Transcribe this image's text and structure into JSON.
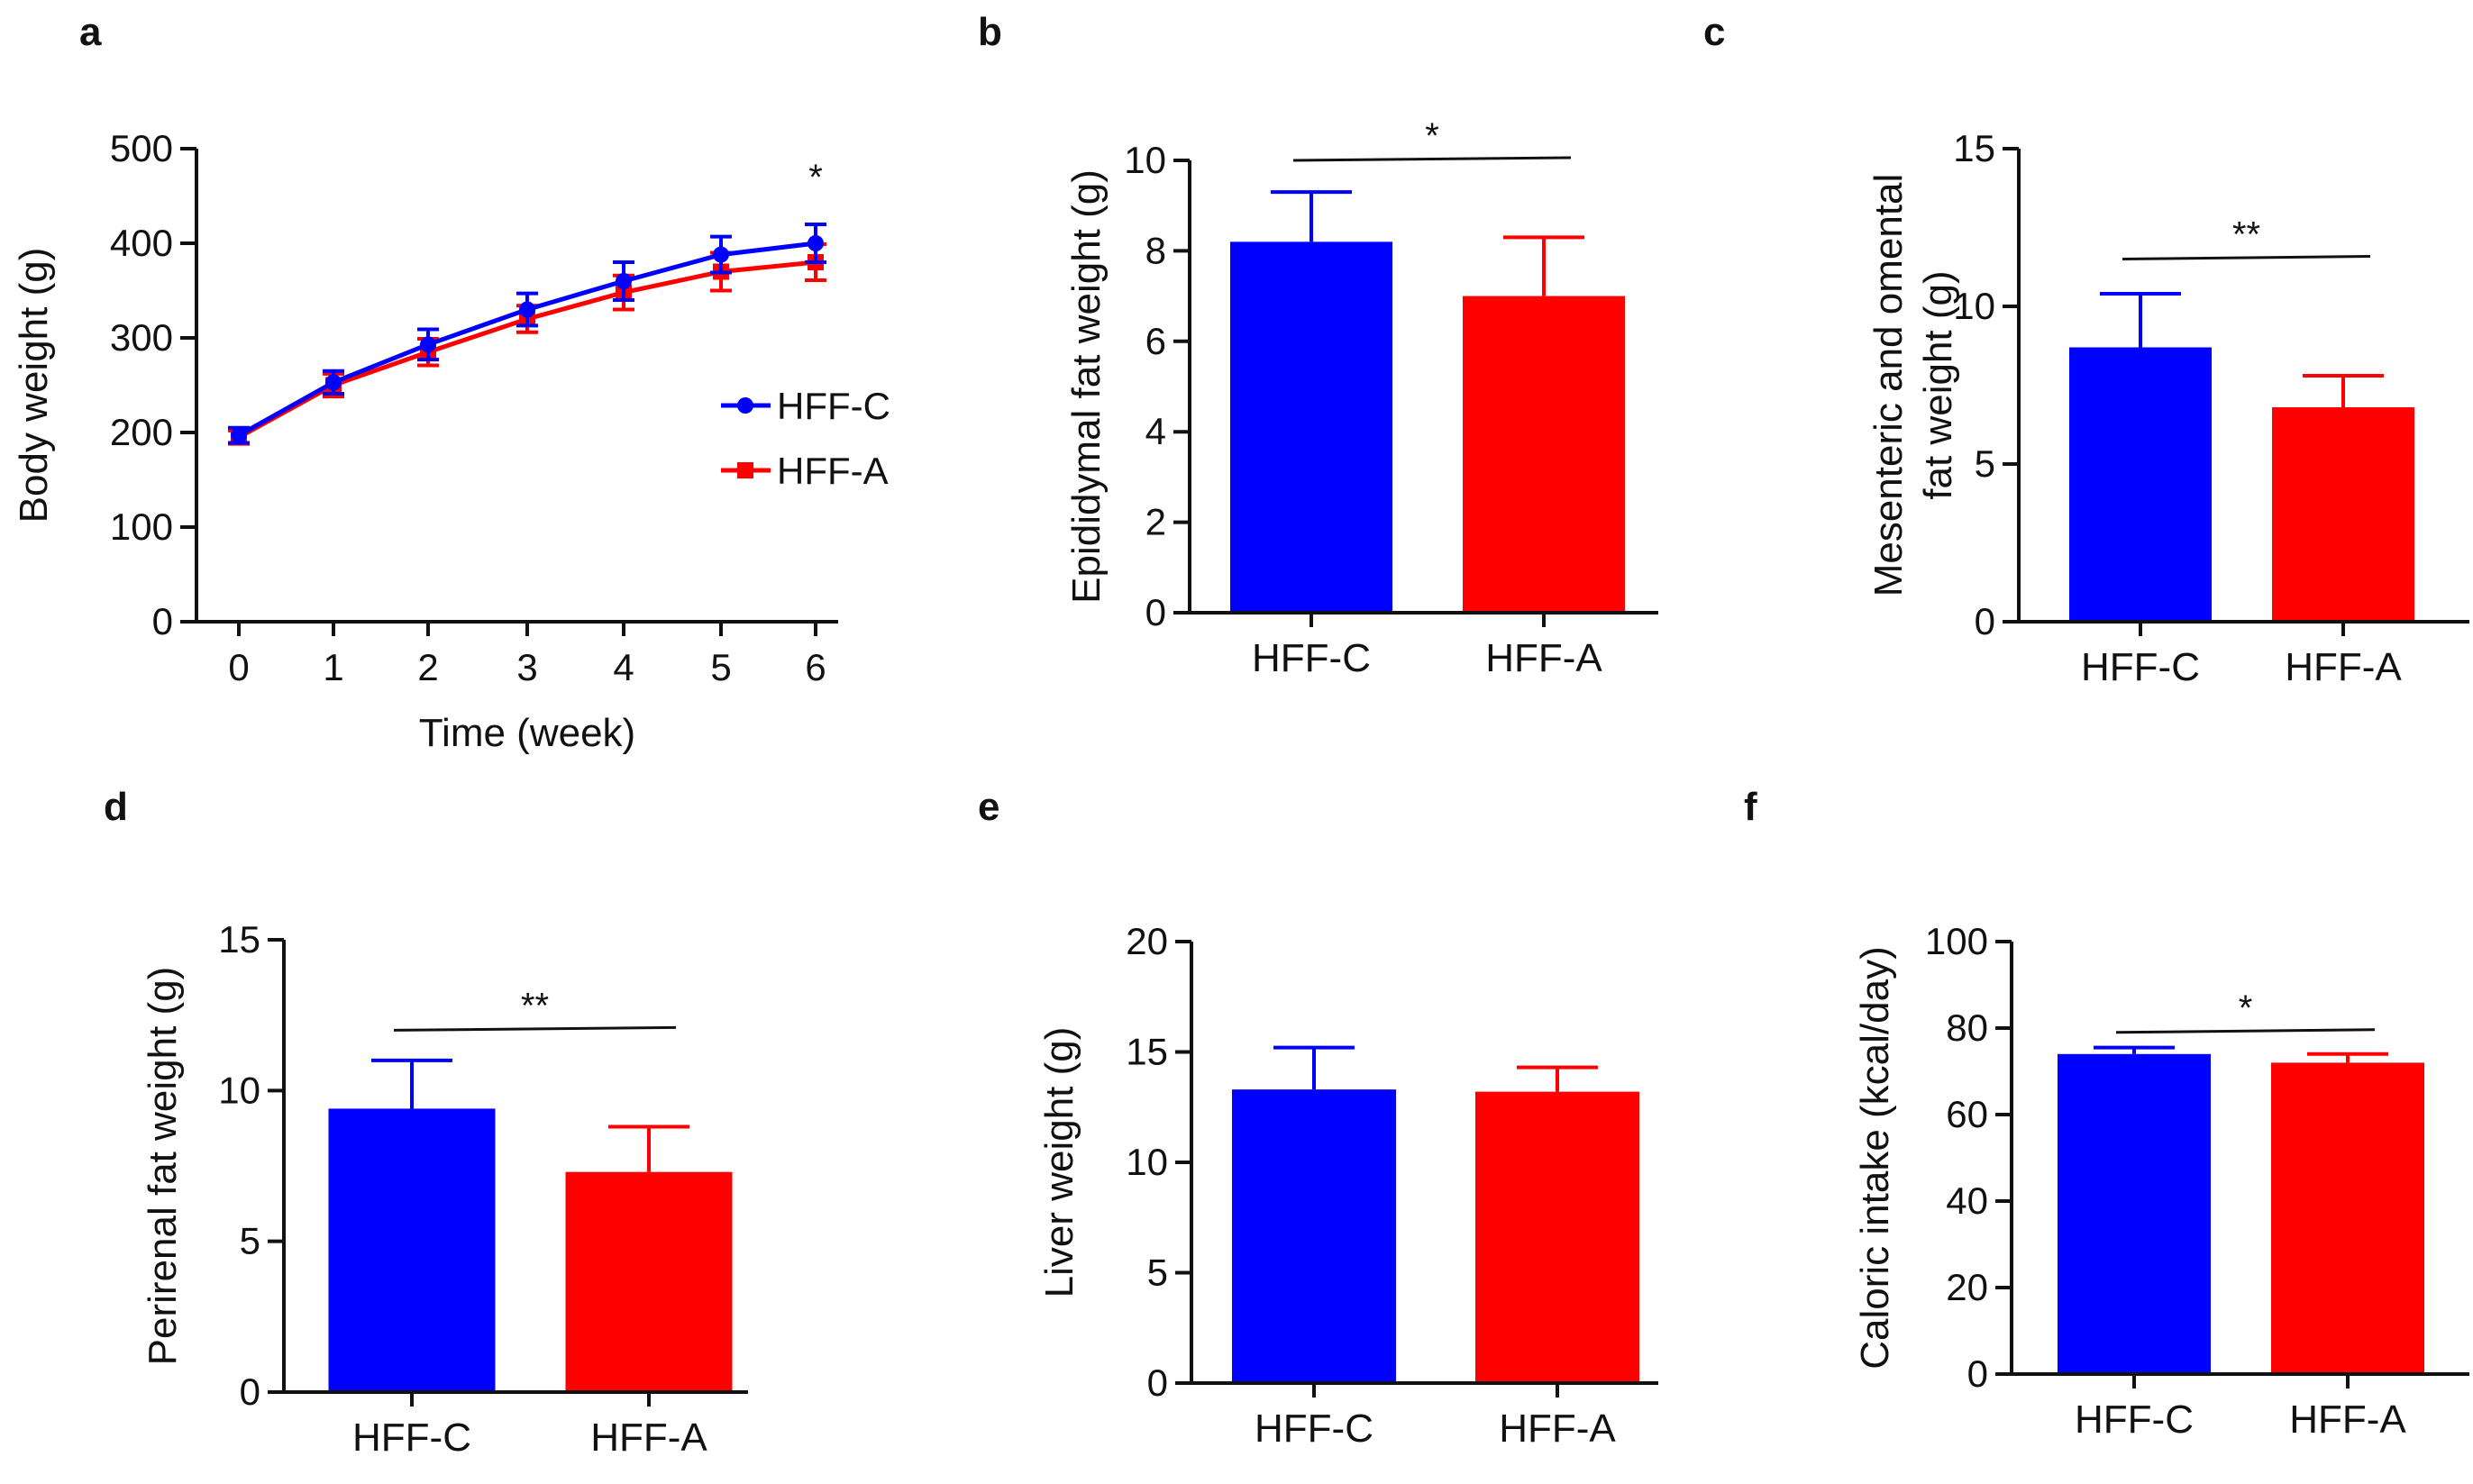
{
  "colors": {
    "control": "#0000FF",
    "treatment": "#FF0000",
    "axis": "#111111"
  },
  "groups": [
    "HFF-C",
    "HFF-A"
  ],
  "chart_data": [
    {
      "panel": "a",
      "type": "line",
      "title": "",
      "xlabel": "Time (week)",
      "ylabel": "Body weight (g)",
      "x": [
        0,
        1,
        2,
        3,
        4,
        5,
        6
      ],
      "xticks": [
        "0",
        "1",
        "2",
        "3",
        "4",
        "5",
        "6"
      ],
      "ylim": [
        0,
        500
      ],
      "yticks": [
        "0",
        "100",
        "200",
        "300",
        "400",
        "500"
      ],
      "series": [
        {
          "name": "HFF-C",
          "color": "#0000FF",
          "marker": "circle",
          "values": [
            197,
            253,
            293,
            330,
            360,
            388,
            400
          ],
          "errors": [
            8,
            12,
            16,
            17,
            20,
            19,
            20
          ]
        },
        {
          "name": "HFF-A",
          "color": "#FF0000",
          "marker": "square",
          "values": [
            195,
            250,
            285,
            320,
            348,
            370,
            380
          ],
          "errors": [
            7,
            12,
            14,
            14,
            18,
            20,
            19
          ]
        }
      ],
      "significance": [
        {
          "x": 6,
          "label": "*"
        }
      ],
      "legend": "right-middle"
    },
    {
      "panel": "b",
      "type": "bar",
      "ylabel": "Epididymal fat weight (g)",
      "categories": [
        "HFF-C",
        "HFF-A"
      ],
      "values": [
        8.2,
        7.0
      ],
      "errors": [
        1.1,
        1.3
      ],
      "ylim": [
        0,
        10
      ],
      "yticks": [
        "0",
        "2",
        "4",
        "6",
        "8",
        "10"
      ],
      "significance": {
        "label": "*",
        "y": 10.0
      }
    },
    {
      "panel": "c",
      "type": "bar",
      "ylabel_lines": [
        "Mesenteric and omental",
        "fat weight (g)"
      ],
      "categories": [
        "HFF-C",
        "HFF-A"
      ],
      "values": [
        8.7,
        6.8
      ],
      "errors": [
        1.7,
        1.0
      ],
      "ylim": [
        0,
        15
      ],
      "yticks": [
        "0",
        "5",
        "10",
        "15"
      ],
      "significance": {
        "label": "**",
        "y": 11.5
      }
    },
    {
      "panel": "d",
      "type": "bar",
      "ylabel": "Perirenal fat  weight (g)",
      "categories": [
        "HFF-C",
        "HFF-A"
      ],
      "values": [
        9.4,
        7.3
      ],
      "errors": [
        1.6,
        1.5
      ],
      "ylim": [
        0,
        15
      ],
      "yticks": [
        "0",
        "5",
        "10",
        "15"
      ],
      "significance": {
        "label": "**",
        "y": 12.0
      }
    },
    {
      "panel": "e",
      "type": "bar",
      "ylabel": "Liver weight (g)",
      "categories": [
        "HFF-C",
        "HFF-A"
      ],
      "values": [
        13.3,
        13.2
      ],
      "errors": [
        1.9,
        1.1
      ],
      "ylim": [
        0,
        20
      ],
      "yticks": [
        "0",
        "5",
        "10",
        "15",
        "20"
      ],
      "significance": null
    },
    {
      "panel": "f",
      "type": "bar",
      "ylabel": "Caloric intake (kcal/day)",
      "categories": [
        "HFF-C",
        "HFF-A"
      ],
      "values": [
        74,
        72
      ],
      "errors": [
        1.5,
        2.0
      ],
      "ylim": [
        0,
        100
      ],
      "yticks": [
        "0",
        "20",
        "40",
        "60",
        "80",
        "100"
      ],
      "significance": {
        "label": "*",
        "y": 79
      }
    }
  ]
}
